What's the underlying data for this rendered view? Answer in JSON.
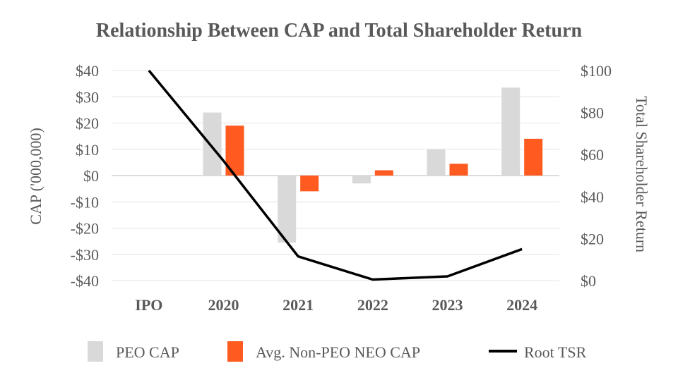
{
  "chart_data": {
    "type": "bar",
    "title": "Relationship Between CAP and Total Shareholder Return",
    "categories": [
      "IPO",
      "2020",
      "2021",
      "2022",
      "2023",
      "2024"
    ],
    "ylabel": "CAP ('000,000)",
    "y2label": "Total Shareholder Return",
    "ylim": [
      -40,
      40
    ],
    "y2lim": [
      0,
      100
    ],
    "yticks": [
      "$40",
      "$30",
      "$20",
      "$10",
      "$0",
      "-$10",
      "-$20",
      "-$30",
      "-$40"
    ],
    "y2ticks": [
      "$100",
      "$80",
      "$60",
      "$40",
      "$20",
      "$0"
    ],
    "series": [
      {
        "name": "PEO CAP",
        "type": "bar",
        "axis": "left",
        "color": "#d9d9d9",
        "values": [
          null,
          24,
          -25.5,
          -3,
          10,
          33.5
        ]
      },
      {
        "name": "Avg. Non-PEO NEO CAP",
        "type": "bar",
        "axis": "left",
        "color": "#ff5a1f",
        "values": [
          null,
          19,
          -6,
          2,
          4.5,
          14
        ]
      },
      {
        "name": "Root TSR",
        "type": "line",
        "axis": "right",
        "color": "#000000",
        "values": [
          100,
          57,
          11.5,
          0.5,
          2,
          15
        ]
      }
    ],
    "legend": [
      "PEO CAP",
      "Avg. Non-PEO NEO CAP",
      "Root TSR"
    ],
    "legend_position": "bottom",
    "grid": true
  }
}
